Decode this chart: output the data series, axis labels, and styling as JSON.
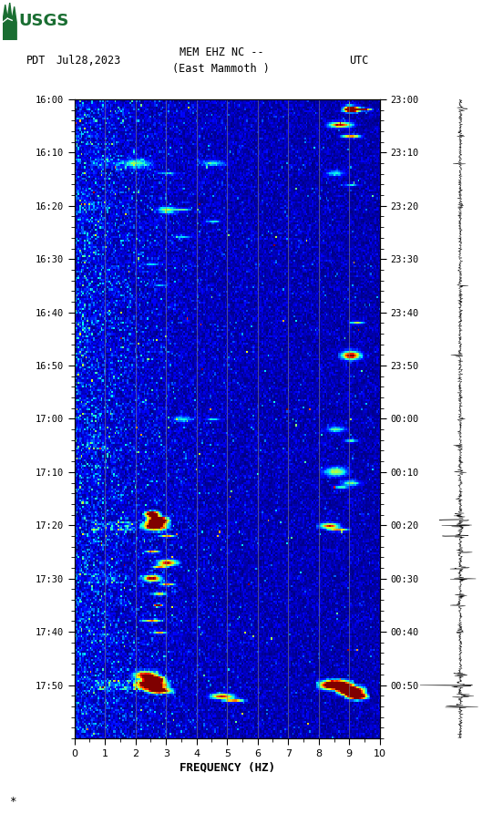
{
  "title_line1": "MEM EHZ NC --",
  "title_line2": "(East Mammoth )",
  "left_label": "PDT",
  "date_label": "Jul28,2023",
  "right_label": "UTC",
  "left_yticks": [
    "16:00",
    "16:10",
    "16:20",
    "16:30",
    "16:40",
    "16:50",
    "17:00",
    "17:10",
    "17:20",
    "17:30",
    "17:40",
    "17:50"
  ],
  "right_yticks": [
    "23:00",
    "23:10",
    "23:20",
    "23:30",
    "23:40",
    "23:50",
    "00:00",
    "00:10",
    "00:20",
    "00:30",
    "00:40",
    "00:50"
  ],
  "xlabel": "FREQUENCY (HZ)",
  "xmin": 0,
  "xmax": 10,
  "freq_gridlines": [
    1,
    2,
    3,
    4,
    5,
    6,
    7,
    8,
    9
  ],
  "fig_width": 5.52,
  "fig_height": 8.93,
  "gridline_color": "#808080",
  "gridline_alpha": 0.7
}
